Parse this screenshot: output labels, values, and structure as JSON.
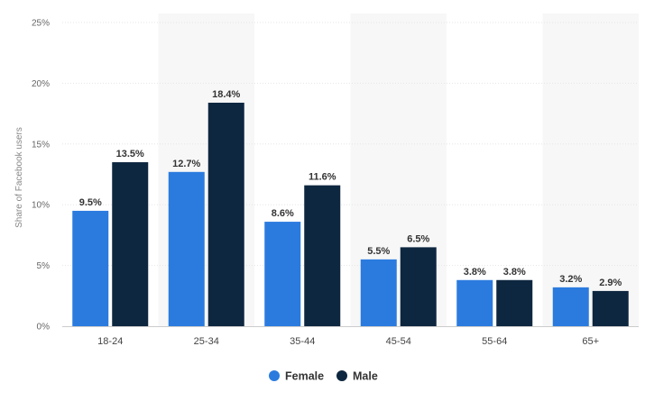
{
  "chart_data": {
    "type": "bar",
    "ylabel": "Share of Facebook users",
    "ylim": [
      0,
      25
    ],
    "yticks": [
      0,
      5,
      10,
      15,
      20,
      25
    ],
    "ytick_labels": [
      "0%",
      "5%",
      "10%",
      "15%",
      "20%",
      "25%"
    ],
    "categories": [
      "18-24",
      "25-34",
      "35-44",
      "45-54",
      "55-64",
      "65+"
    ],
    "series": [
      {
        "name": "Female",
        "color": "#2b7bdf",
        "values": [
          9.5,
          12.7,
          8.6,
          5.5,
          3.8,
          3.2
        ],
        "labels": [
          "9.5%",
          "12.7%",
          "8.6%",
          "5.5%",
          "3.8%",
          "3.2%"
        ]
      },
      {
        "name": "Male",
        "color": "#0e2740",
        "values": [
          13.5,
          18.4,
          11.6,
          6.5,
          3.8,
          2.9
        ],
        "labels": [
          "13.5%",
          "18.4%",
          "11.6%",
          "6.5%",
          "3.8%",
          "2.9%"
        ]
      }
    ],
    "grid": true,
    "alternating_bands": true,
    "legend_position": "bottom-center"
  }
}
